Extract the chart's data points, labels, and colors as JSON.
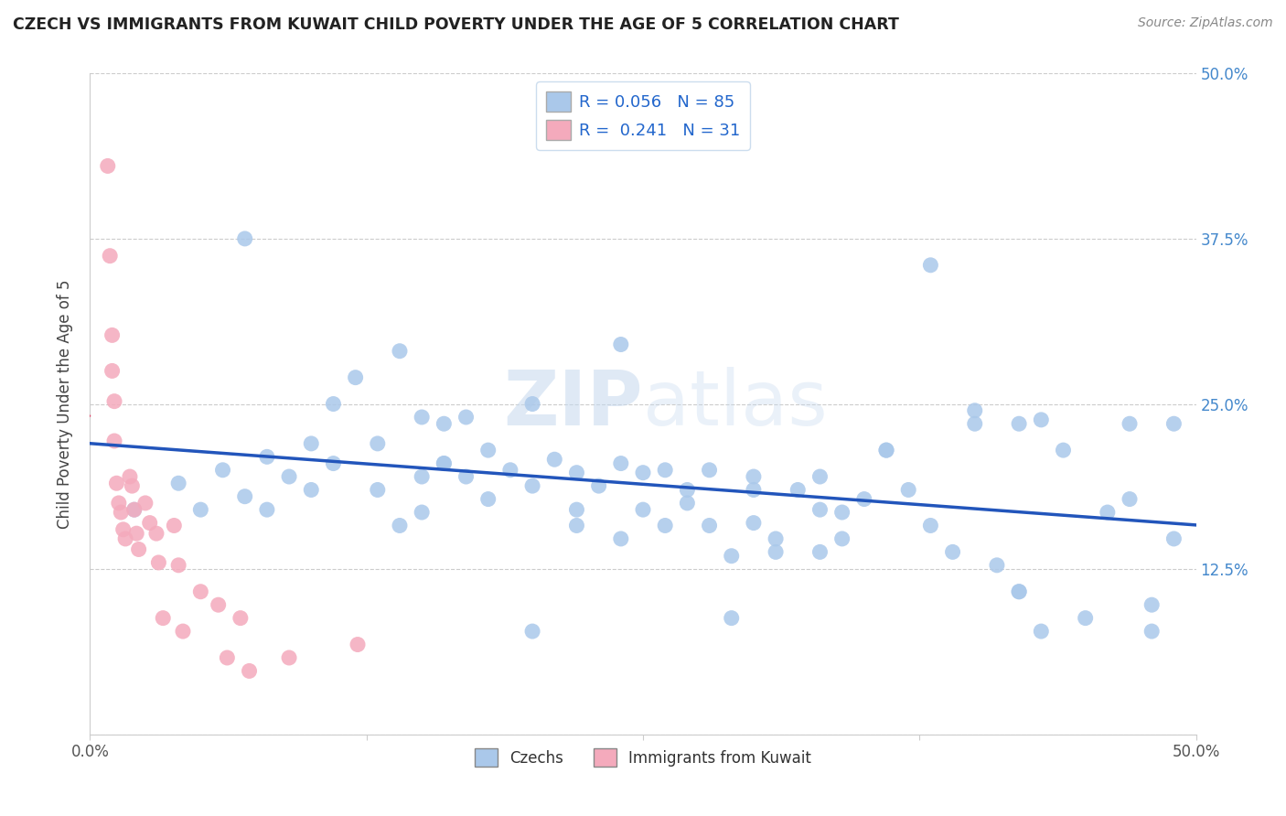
{
  "title": "CZECH VS IMMIGRANTS FROM KUWAIT CHILD POVERTY UNDER THE AGE OF 5 CORRELATION CHART",
  "source": "Source: ZipAtlas.com",
  "ylabel": "Child Poverty Under the Age of 5",
  "xlim": [
    0,
    0.5
  ],
  "ylim": [
    0,
    0.5
  ],
  "czech_R": 0.056,
  "czech_N": 85,
  "kuwait_R": 0.241,
  "kuwait_N": 31,
  "czech_color": "#aac8ea",
  "kuwait_color": "#f4aabc",
  "trendline_czech_color": "#2255bb",
  "trendline_kuwait_color": "#dd4466",
  "czech_x": [
    0.02,
    0.04,
    0.05,
    0.06,
    0.07,
    0.08,
    0.08,
    0.09,
    0.1,
    0.1,
    0.11,
    0.11,
    0.12,
    0.13,
    0.13,
    0.14,
    0.15,
    0.15,
    0.16,
    0.16,
    0.17,
    0.17,
    0.18,
    0.18,
    0.19,
    0.2,
    0.2,
    0.21,
    0.22,
    0.22,
    0.23,
    0.24,
    0.25,
    0.25,
    0.26,
    0.26,
    0.27,
    0.28,
    0.28,
    0.29,
    0.3,
    0.3,
    0.31,
    0.32,
    0.33,
    0.33,
    0.34,
    0.35,
    0.36,
    0.37,
    0.38,
    0.39,
    0.4,
    0.41,
    0.42,
    0.43,
    0.44,
    0.45,
    0.46,
    0.47,
    0.48,
    0.49,
    0.49,
    0.38,
    0.29,
    0.2,
    0.33,
    0.42,
    0.07,
    0.16,
    0.24,
    0.3,
    0.4,
    0.14,
    0.22,
    0.31,
    0.43,
    0.47,
    0.27,
    0.36,
    0.15,
    0.24,
    0.34,
    0.42,
    0.48
  ],
  "czech_y": [
    0.17,
    0.19,
    0.17,
    0.2,
    0.18,
    0.21,
    0.17,
    0.195,
    0.22,
    0.185,
    0.25,
    0.205,
    0.27,
    0.22,
    0.185,
    0.29,
    0.24,
    0.195,
    0.235,
    0.205,
    0.24,
    0.195,
    0.215,
    0.178,
    0.2,
    0.25,
    0.188,
    0.208,
    0.198,
    0.17,
    0.188,
    0.205,
    0.198,
    0.17,
    0.158,
    0.2,
    0.175,
    0.2,
    0.158,
    0.135,
    0.195,
    0.16,
    0.138,
    0.185,
    0.17,
    0.195,
    0.148,
    0.178,
    0.215,
    0.185,
    0.158,
    0.138,
    0.235,
    0.128,
    0.108,
    0.078,
    0.215,
    0.088,
    0.168,
    0.235,
    0.078,
    0.148,
    0.235,
    0.355,
    0.088,
    0.078,
    0.138,
    0.235,
    0.375,
    0.205,
    0.295,
    0.185,
    0.245,
    0.158,
    0.158,
    0.148,
    0.238,
    0.178,
    0.185,
    0.215,
    0.168,
    0.148,
    0.168,
    0.108,
    0.098
  ],
  "kuwait_x": [
    0.008,
    0.009,
    0.01,
    0.01,
    0.011,
    0.011,
    0.012,
    0.013,
    0.014,
    0.015,
    0.016,
    0.018,
    0.019,
    0.02,
    0.021,
    0.022,
    0.025,
    0.027,
    0.03,
    0.031,
    0.033,
    0.038,
    0.04,
    0.042,
    0.05,
    0.058,
    0.062,
    0.068,
    0.072,
    0.09,
    0.121
  ],
  "kuwait_y": [
    0.43,
    0.362,
    0.302,
    0.275,
    0.252,
    0.222,
    0.19,
    0.175,
    0.168,
    0.155,
    0.148,
    0.195,
    0.188,
    0.17,
    0.152,
    0.14,
    0.175,
    0.16,
    0.152,
    0.13,
    0.088,
    0.158,
    0.128,
    0.078,
    0.108,
    0.098,
    0.058,
    0.088,
    0.048,
    0.058,
    0.068
  ]
}
